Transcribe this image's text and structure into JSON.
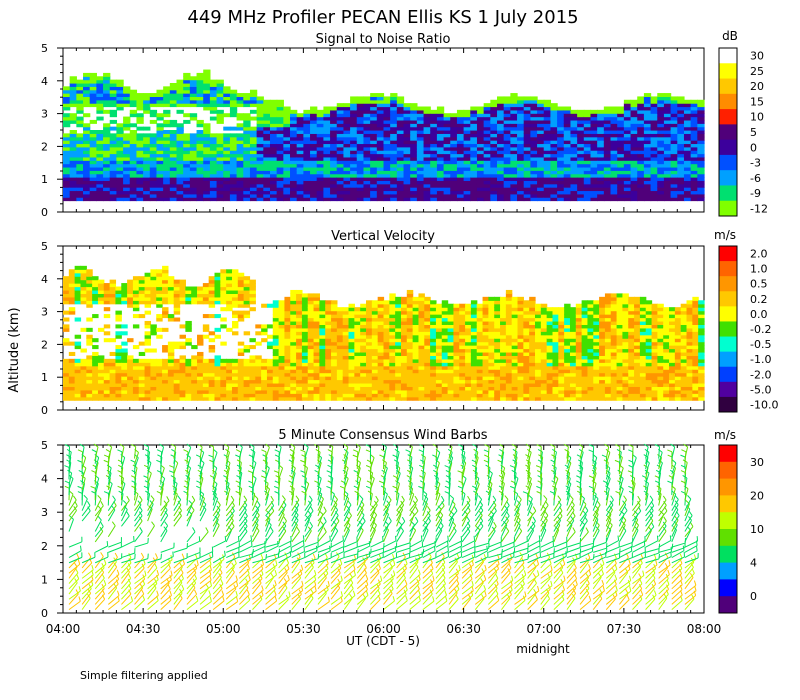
{
  "title": "449 MHz Profiler PECAN Ellis KS  1 July 2015",
  "ylabel": "Altitude (km)",
  "xlabel": "UT  (CDT - 5)",
  "midnight_label": "midnight",
  "footnote": "Simple filtering applied",
  "x_ticks": [
    "04:00",
    "04:30",
    "05:00",
    "05:30",
    "06:00",
    "06:30",
    "07:00",
    "07:30",
    "08:00"
  ],
  "chart_data": [
    {
      "type": "heatmap",
      "title": "Signal to Noise Ratio",
      "ylabel": "Altitude (km)",
      "xlabel": "UT  (CDT - 5)",
      "xlim": [
        "04:00",
        "08:00"
      ],
      "ylim": [
        0,
        5
      ],
      "y_ticks": [
        "0",
        "1",
        "2",
        "3",
        "4",
        "5"
      ],
      "colorbar": {
        "unit": "dB",
        "labels": [
          "30",
          "25",
          "20",
          "15",
          "10",
          "5",
          "0",
          "-3",
          "-6",
          "-9",
          "-12"
        ],
        "colors": [
          "#ffffff",
          "#ffff00",
          "#ffc800",
          "#ff8c00",
          "#ff2000",
          "#50007a",
          "#3c009c",
          "#0050ff",
          "#00a0ff",
          "#00e070",
          "#80ff00"
        ]
      }
    },
    {
      "type": "heatmap",
      "title": "Vertical Velocity",
      "xlim": [
        "04:00",
        "08:00"
      ],
      "ylim": [
        0,
        5
      ],
      "y_ticks": [
        "0",
        "1",
        "2",
        "3",
        "4",
        "5"
      ],
      "colorbar": {
        "unit": "m/s",
        "labels": [
          "2.0",
          "1.0",
          "0.5",
          "0.2",
          "0.0",
          "-0.2",
          "-0.5",
          "-1.0",
          "-2.0",
          "-5.0",
          "-10.0"
        ],
        "colors": [
          "#ff0000",
          "#ff6400",
          "#ff9600",
          "#ffc800",
          "#ffff00",
          "#40e000",
          "#00ffd0",
          "#00a0ff",
          "#0040ff",
          "#5000a0",
          "#300040"
        ]
      }
    },
    {
      "type": "scatter",
      "title": "5 Minute Consensus Wind Barbs",
      "xlim": [
        "04:00",
        "08:00"
      ],
      "ylim": [
        0,
        5
      ],
      "y_ticks": [
        "0",
        "1",
        "2",
        "3",
        "4",
        "5"
      ],
      "colorbar": {
        "unit": "m/s",
        "labels": [
          "30",
          "20",
          "10",
          "4",
          "0"
        ],
        "colors": [
          "#ff0000",
          "#ff6400",
          "#ff9600",
          "#ffc800",
          "#c0ff00",
          "#60e000",
          "#00e060",
          "#00a0ff",
          "#0000ff",
          "#50007a"
        ]
      }
    }
  ]
}
